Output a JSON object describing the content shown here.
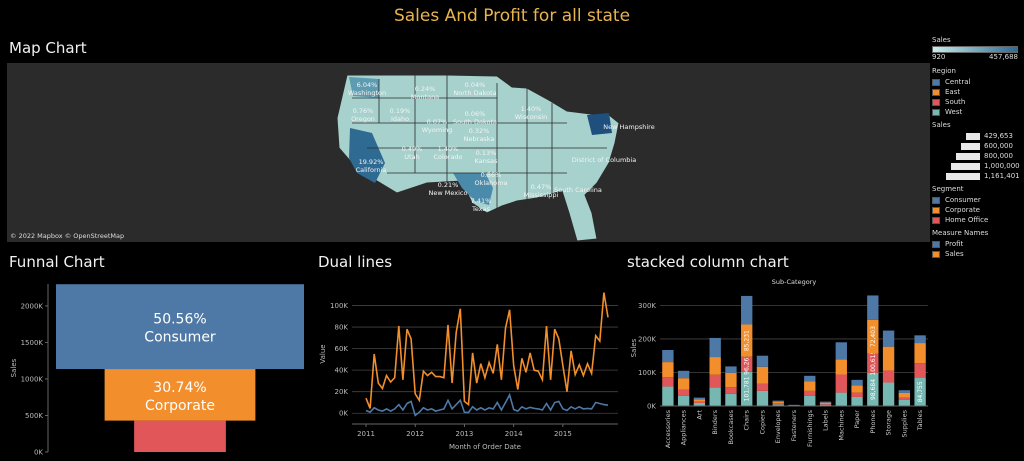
{
  "dashboard_title": "Sales And Profit for all state",
  "map": {
    "title": "Map Chart",
    "attribution": "© 2022 Mapbox © OpenStreetMap",
    "labels": [
      {
        "state": "Washington",
        "pct": "6.04%"
      },
      {
        "state": "Montana",
        "pct": "0.24%"
      },
      {
        "state": "North Dakota",
        "pct": "0.04%"
      },
      {
        "state": "Oregon",
        "pct": "0.76%"
      },
      {
        "state": "Idaho",
        "pct": "0.19%"
      },
      {
        "state": "Wyoming",
        "pct": "0.07%"
      },
      {
        "state": "South Dakota",
        "pct": "0.06%"
      },
      {
        "state": "Wisconsin",
        "pct": "1.40%"
      },
      {
        "state": "Nebraska",
        "pct": "0.32%"
      },
      {
        "state": "Utah",
        "pct": "0.49%"
      },
      {
        "state": "Colorado",
        "pct": "1.40%"
      },
      {
        "state": "Kansas",
        "pct": "0.13%"
      },
      {
        "state": "California",
        "pct": "19.92%"
      },
      {
        "state": "Oklahoma",
        "pct": "0.86%"
      },
      {
        "state": "New Mexico",
        "pct": "0.21%"
      },
      {
        "state": "Texas",
        "pct": "7.41%"
      },
      {
        "state": "Mississippi",
        "pct": "0.47%"
      },
      {
        "state": "South Carolina",
        "pct": ""
      },
      {
        "state": "District of Columbia",
        "pct": ""
      },
      {
        "state": "New Hampshire",
        "pct": ""
      }
    ]
  },
  "legends": {
    "sales_color": {
      "title": "Sales",
      "min": "920",
      "max": "457,688"
    },
    "region": {
      "title": "Region",
      "items": [
        {
          "label": "Central",
          "color": "#4e79a7"
        },
        {
          "label": "East",
          "color": "#f28e2b"
        },
        {
          "label": "South",
          "color": "#e15759"
        },
        {
          "label": "West",
          "color": "#76b7b2"
        }
      ]
    },
    "sales_size": {
      "title": "Sales",
      "items": [
        "429,653",
        "600,000",
        "800,000",
        "1,000,000",
        "1,161,401"
      ]
    },
    "segment": {
      "title": "Segment",
      "items": [
        {
          "label": "Consumer",
          "color": "#4e79a7"
        },
        {
          "label": "Corporate",
          "color": "#f28e2b"
        },
        {
          "label": "Home Office",
          "color": "#e15759"
        }
      ]
    },
    "measure": {
      "title": "Measure Names",
      "items": [
        {
          "label": "Profit",
          "color": "#4e79a7"
        },
        {
          "label": "Sales",
          "color": "#f28e2b"
        }
      ]
    }
  },
  "chart_data": [
    {
      "type": "bar",
      "title": "Funnal Chart",
      "ylabel": "Sales",
      "ylim": [
        0,
        2300000
      ],
      "yticks": [
        "0K",
        "500K",
        "1000K",
        "1500K",
        "2000K"
      ],
      "categories": [
        "Consumer",
        "Corporate",
        "Home Office"
      ],
      "values": [
        1161401,
        706146,
        429653
      ],
      "colors": [
        "#4e79a7",
        "#f28e2b",
        "#e15759"
      ],
      "pct_labels": [
        "50.56%",
        "30.74%",
        ""
      ]
    },
    {
      "type": "line",
      "title": "Dual lines",
      "xlabel": "Month of Order Date",
      "ylabel": "Value",
      "ylim": [
        -10000,
        120000
      ],
      "yticks": [
        "0K",
        "20K",
        "40K",
        "60K",
        "80K",
        "100K"
      ],
      "xticks": [
        "2011",
        "2012",
        "2013",
        "2014",
        "2015"
      ],
      "series": [
        {
          "name": "Sales",
          "color": "#f28e2b",
          "values": [
            14000,
            4500,
            55000,
            28000,
            23000,
            35000,
            29000,
            33000,
            81000,
            31000,
            78000,
            69000,
            18000,
            12000,
            39000,
            35000,
            38000,
            34000,
            34000,
            33000,
            82000,
            28000,
            75000,
            97000,
            11000,
            8000,
            56000,
            28000,
            46000,
            33000,
            47000,
            37000,
            64000,
            31000,
            79000,
            96000,
            44000,
            22000,
            51000,
            38000,
            56000,
            40000,
            39000,
            31000,
            81000,
            31000,
            78000,
            69000,
            44000,
            20000,
            58000,
            36000,
            45000,
            35000,
            46000,
            37000,
            72000,
            67000,
            112000,
            89000
          ]
        },
        {
          "name": "Profit",
          "color": "#4e79a7",
          "values": [
            2500,
            1000,
            5000,
            3000,
            2000,
            4000,
            2000,
            4000,
            8000,
            3000,
            9000,
            11000,
            -2000,
            1000,
            5000,
            3000,
            4000,
            2000,
            3000,
            4000,
            12000,
            4000,
            8000,
            12000,
            1000,
            700,
            6000,
            3000,
            5000,
            3000,
            5000,
            4000,
            10000,
            3000,
            10000,
            17000,
            3500,
            2000,
            6000,
            4000,
            5500,
            4500,
            4000,
            3000,
            9000,
            3000,
            10000,
            11000,
            4000,
            2500,
            6000,
            4000,
            6000,
            4000,
            4500,
            4000,
            10000,
            9000,
            8000,
            7500
          ]
        }
      ]
    },
    {
      "type": "bar",
      "title": "stacked column chart",
      "subtitle": "Sub-Category",
      "ylabel": "Sales",
      "ylim": [
        0,
        340000
      ],
      "yticks": [
        "0K",
        "100K",
        "200K",
        "300K"
      ],
      "categories": [
        "Accessories",
        "Appliances",
        "Art",
        "Binders",
        "Bookcases",
        "Chairs",
        "Copiers",
        "Envelopes",
        "Fasteners",
        "Furnishings",
        "Labels",
        "Machines",
        "Paper",
        "Phones",
        "Storage",
        "Supplies",
        "Tables"
      ],
      "colors": [
        "#76b7b2",
        "#e15759",
        "#f28e2b",
        "#4e79a7"
      ],
      "series": [
        {
          "name": "West",
          "values": [
            58000,
            30000,
            9000,
            55000,
            36000,
            101781,
            45000,
            5000,
            1000,
            30000,
            4000,
            40000,
            27000,
            98684,
            70000,
            18000,
            84755
          ]
        },
        {
          "name": "South",
          "values": [
            28000,
            19000,
            4000,
            38000,
            20000,
            45000,
            22000,
            3000,
            800,
            15000,
            2000,
            54000,
            13000,
            58000,
            36000,
            7000,
            43000
          ]
        },
        {
          "name": "East",
          "values": [
            45000,
            34000,
            7000,
            53000,
            43000,
            96261,
            50000,
            5000,
            1000,
            29000,
            4000,
            45000,
            21000,
            100615,
            71000,
            14000,
            60000
          ]
        },
        {
          "name": "Central",
          "values": [
            36000,
            22000,
            5000,
            57000,
            19000,
            85231,
            33000,
            3000,
            700,
            16000,
            3000,
            51000,
            17000,
            72403,
            48000,
            8000,
            23000
          ]
        }
      ],
      "data_labels": {
        "Chairs": [
          "101,781",
          "96,261",
          "85,231"
        ],
        "Phones": [
          "98,684",
          "100,615",
          "72,403"
        ],
        "Tables": [
          "84,755"
        ]
      }
    }
  ]
}
